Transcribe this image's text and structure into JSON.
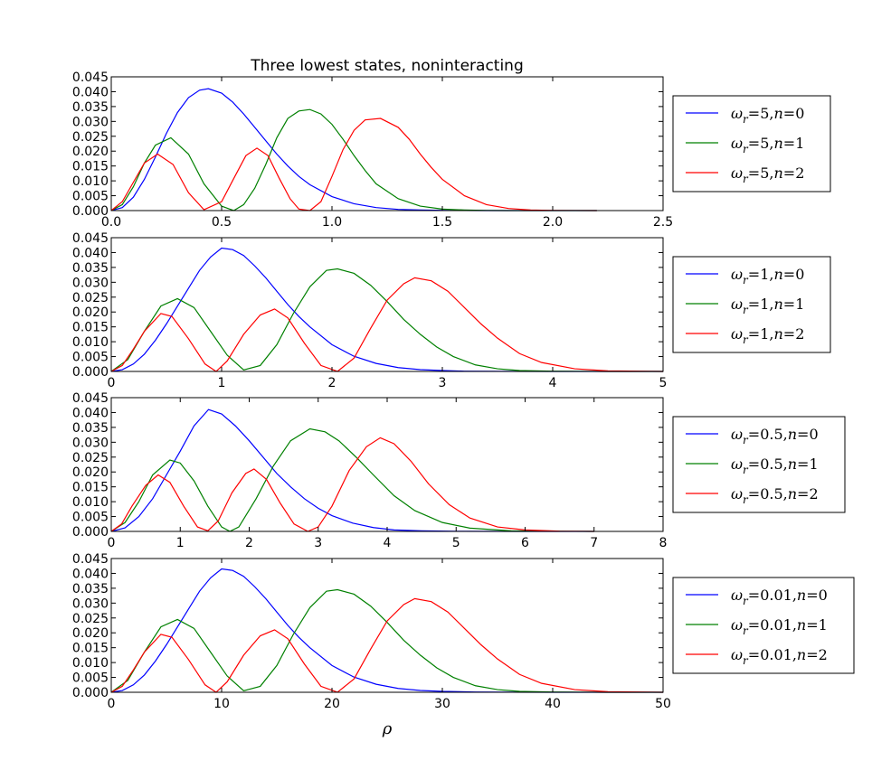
{
  "chart_data": {
    "type": "line",
    "title": "Three lowest states, noninteracting",
    "xlabel": "ρ",
    "ylabel": "",
    "grid": false,
    "legend_placement": "outside-right",
    "colors": {
      "n0": "#0000ff",
      "n1": "#008000",
      "n2": "#ff0000"
    },
    "panels": [
      {
        "omega": "5",
        "xlim": [
          0,
          2.5
        ],
        "ylim": [
          0,
          0.045
        ],
        "xticks": [
          "0.0",
          "0.5",
          "1.0",
          "1.5",
          "2.0",
          "2.5"
        ],
        "yticks": [
          "0.000",
          "0.005",
          "0.010",
          "0.015",
          "0.020",
          "0.025",
          "0.030",
          "0.035",
          "0.040",
          "0.045"
        ],
        "series": [
          {
            "name": "ω_r=5, n=0",
            "x": [
              0,
              0.05,
              0.1,
              0.15,
              0.2,
              0.25,
              0.3,
              0.35,
              0.4,
              0.44,
              0.5,
              0.55,
              0.6,
              0.65,
              0.7,
              0.75,
              0.8,
              0.85,
              0.9,
              1.0,
              1.1,
              1.2,
              1.3,
              1.4,
              1.5,
              1.6,
              1.7,
              1.8,
              2.0,
              2.2
            ],
            "y": [
              0,
              0.001,
              0.0045,
              0.0105,
              0.018,
              0.026,
              0.033,
              0.038,
              0.0405,
              0.041,
              0.0395,
              0.0365,
              0.0325,
              0.028,
              0.0235,
              0.019,
              0.015,
              0.0115,
              0.0087,
              0.0047,
              0.0023,
              0.001,
              0.0004,
              0.0002,
              0.0001,
              3e-05,
              1e-05,
              0,
              0,
              0
            ]
          },
          {
            "name": "ω_r=5, n=1",
            "x": [
              0,
              0.05,
              0.1,
              0.15,
              0.2,
              0.27,
              0.35,
              0.42,
              0.5,
              0.555,
              0.6,
              0.65,
              0.7,
              0.75,
              0.8,
              0.85,
              0.9,
              0.95,
              1.0,
              1.05,
              1.1,
              1.15,
              1.2,
              1.3,
              1.4,
              1.5,
              1.6,
              1.7,
              1.8,
              2.0,
              2.2
            ],
            "y": [
              0,
              0.002,
              0.008,
              0.016,
              0.022,
              0.0245,
              0.019,
              0.009,
              0.0015,
              0,
              0.002,
              0.0075,
              0.0155,
              0.0245,
              0.031,
              0.0335,
              0.034,
              0.0325,
              0.029,
              0.024,
              0.0185,
              0.0135,
              0.009,
              0.004,
              0.0015,
              0.0005,
              0.0002,
              5e-05,
              0,
              0,
              0
            ]
          },
          {
            "name": "ω_r=5, n=2",
            "x": [
              0,
              0.05,
              0.1,
              0.15,
              0.21,
              0.28,
              0.35,
              0.42,
              0.5,
              0.56,
              0.61,
              0.66,
              0.71,
              0.76,
              0.81,
              0.85,
              0.9,
              0.95,
              1.0,
              1.05,
              1.1,
              1.15,
              1.22,
              1.3,
              1.35,
              1.4,
              1.45,
              1.5,
              1.6,
              1.7,
              1.8,
              1.9,
              2.0,
              2.2
            ],
            "y": [
              0,
              0.003,
              0.0095,
              0.016,
              0.019,
              0.0155,
              0.006,
              0.0003,
              0.003,
              0.0115,
              0.0185,
              0.021,
              0.0185,
              0.011,
              0.004,
              0.0005,
              0,
              0.003,
              0.0115,
              0.0205,
              0.027,
              0.0305,
              0.031,
              0.028,
              0.024,
              0.019,
              0.0145,
              0.0105,
              0.005,
              0.002,
              0.0007,
              0.0002,
              5e-05,
              0
            ]
          }
        ]
      },
      {
        "omega": "1",
        "xlim": [
          0,
          5
        ],
        "ylim": [
          0,
          0.045
        ],
        "xticks": [
          "0",
          "1",
          "2",
          "3",
          "4",
          "5"
        ],
        "yticks": [
          "0.000",
          "0.005",
          "0.010",
          "0.015",
          "0.020",
          "0.025",
          "0.030",
          "0.035",
          "0.040",
          "0.045"
        ],
        "series": [
          {
            "name": "ω_r=1, n=0",
            "x": [
              0,
              0.1,
              0.2,
              0.3,
              0.4,
              0.5,
              0.6,
              0.7,
              0.8,
              0.9,
              1.0,
              1.1,
              1.2,
              1.3,
              1.4,
              1.5,
              1.6,
              1.7,
              1.8,
              2.0,
              2.2,
              2.4,
              2.6,
              2.8,
              3.0,
              3.2,
              3.5,
              4.0,
              4.5,
              5.0
            ],
            "y": [
              0,
              0.0006,
              0.0025,
              0.0058,
              0.0105,
              0.016,
              0.022,
              0.028,
              0.034,
              0.0385,
              0.0415,
              0.041,
              0.039,
              0.0355,
              0.0315,
              0.027,
              0.0225,
              0.0185,
              0.015,
              0.009,
              0.0051,
              0.0027,
              0.0013,
              0.0006,
              0.0003,
              0.0001,
              3e-05,
              0,
              0,
              0
            ]
          },
          {
            "name": "ω_r=1, n=1",
            "x": [
              0,
              0.15,
              0.3,
              0.45,
              0.6,
              0.75,
              0.9,
              1.05,
              1.2,
              1.35,
              1.5,
              1.65,
              1.8,
              1.95,
              2.05,
              2.2,
              2.35,
              2.5,
              2.65,
              2.8,
              2.95,
              3.1,
              3.3,
              3.5,
              3.7,
              4.0,
              4.5,
              5.0
            ],
            "y": [
              0,
              0.004,
              0.0135,
              0.022,
              0.0245,
              0.0215,
              0.0135,
              0.0055,
              0.0005,
              0.002,
              0.009,
              0.0195,
              0.0285,
              0.034,
              0.0345,
              0.033,
              0.029,
              0.0235,
              0.0175,
              0.0125,
              0.0082,
              0.005,
              0.0022,
              0.0009,
              0.0003,
              0.0001,
              0,
              0
            ]
          },
          {
            "name": "ω_r=1, n=2",
            "x": [
              0,
              0.1,
              0.2,
              0.3,
              0.45,
              0.55,
              0.7,
              0.85,
              0.95,
              1.05,
              1.2,
              1.35,
              1.48,
              1.6,
              1.75,
              1.9,
              2.05,
              2.2,
              2.35,
              2.5,
              2.65,
              2.75,
              2.9,
              3.05,
              3.2,
              3.35,
              3.5,
              3.7,
              3.9,
              4.2,
              4.5,
              5.0
            ],
            "y": [
              0,
              0.002,
              0.0075,
              0.0135,
              0.0195,
              0.0185,
              0.011,
              0.0025,
              0,
              0.0035,
              0.0125,
              0.019,
              0.021,
              0.018,
              0.0095,
              0.002,
              0,
              0.0045,
              0.0145,
              0.024,
              0.0295,
              0.0315,
              0.0305,
              0.027,
              0.0215,
              0.016,
              0.0112,
              0.006,
              0.003,
              0.0009,
              0.0002,
              0
            ]
          }
        ]
      },
      {
        "omega": "0.5",
        "xlim": [
          0,
          8
        ],
        "ylim": [
          0,
          0.045
        ],
        "xticks": [
          "0",
          "1",
          "2",
          "3",
          "4",
          "5",
          "6",
          "7",
          "8"
        ],
        "yticks": [
          "0.000",
          "0.005",
          "0.010",
          "0.015",
          "0.020",
          "0.025",
          "0.030",
          "0.035",
          "0.040",
          "0.045"
        ],
        "series": [
          {
            "name": "ω_r=0.5, n=0",
            "x": [
              0,
              0.2,
              0.4,
              0.6,
              0.8,
              1.0,
              1.2,
              1.41,
              1.6,
              1.8,
              2.0,
              2.2,
              2.4,
              2.6,
              2.8,
              3.0,
              3.2,
              3.5,
              3.8,
              4.1,
              4.5,
              5.0,
              6.0,
              7.0
            ],
            "y": [
              0,
              0.0012,
              0.005,
              0.011,
              0.019,
              0.027,
              0.0355,
              0.041,
              0.0395,
              0.0355,
              0.0305,
              0.025,
              0.0195,
              0.015,
              0.011,
              0.0078,
              0.0053,
              0.0028,
              0.0013,
              0.0005,
              0.0002,
              3e-05,
              0,
              0
            ]
          },
          {
            "name": "ω_r=0.5, n=1",
            "x": [
              0,
              0.2,
              0.4,
              0.6,
              0.85,
              1.0,
              1.2,
              1.4,
              1.6,
              1.72,
              1.85,
              2.1,
              2.35,
              2.6,
              2.88,
              3.1,
              3.3,
              3.55,
              3.8,
              4.1,
              4.4,
              4.8,
              5.2,
              5.8,
              6.5,
              7.0
            ],
            "y": [
              0,
              0.003,
              0.01,
              0.019,
              0.024,
              0.023,
              0.017,
              0.0085,
              0.0015,
              0,
              0.0015,
              0.011,
              0.022,
              0.0305,
              0.0345,
              0.0335,
              0.0305,
              0.025,
              0.019,
              0.012,
              0.007,
              0.003,
              0.0011,
              0.0002,
              3e-05,
              0
            ]
          },
          {
            "name": "ω_r=0.5, n=2",
            "x": [
              0,
              0.15,
              0.3,
              0.5,
              0.68,
              0.85,
              1.05,
              1.25,
              1.4,
              1.55,
              1.75,
              1.95,
              2.07,
              2.25,
              2.45,
              2.65,
              2.85,
              3.0,
              3.2,
              3.45,
              3.7,
              3.9,
              4.1,
              4.35,
              4.6,
              4.9,
              5.2,
              5.6,
              6.0,
              6.5,
              7.0
            ],
            "y": [
              0,
              0.0025,
              0.0085,
              0.0155,
              0.019,
              0.0165,
              0.0085,
              0.0015,
              0.0002,
              0.0035,
              0.013,
              0.0195,
              0.021,
              0.0175,
              0.0095,
              0.0025,
              0,
              0.0015,
              0.0085,
              0.0205,
              0.0285,
              0.0315,
              0.0295,
              0.0235,
              0.016,
              0.009,
              0.0045,
              0.0015,
              0.0005,
              0.0001,
              0
            ]
          }
        ]
      },
      {
        "omega": "0.01",
        "xlim": [
          0,
          50
        ],
        "ylim": [
          0,
          0.045
        ],
        "xticks": [
          "0",
          "10",
          "20",
          "30",
          "40",
          "50"
        ],
        "yticks": [
          "0.000",
          "0.005",
          "0.010",
          "0.015",
          "0.020",
          "0.025",
          "0.030",
          "0.035",
          "0.040",
          "0.045"
        ],
        "series": [
          {
            "name": "ω_r=0.01, n=0",
            "x": [
              0,
              1,
              2,
              3,
              4,
              5,
              6,
              7,
              8,
              9,
              10,
              11,
              12,
              13,
              14,
              15,
              16,
              17,
              18,
              20,
              22,
              24,
              26,
              28,
              30,
              33,
              36,
              40,
              45,
              50
            ],
            "y": [
              0,
              0.0006,
              0.0025,
              0.0058,
              0.0105,
              0.016,
              0.022,
              0.028,
              0.034,
              0.0385,
              0.0415,
              0.041,
              0.039,
              0.0355,
              0.0315,
              0.027,
              0.0225,
              0.0185,
              0.015,
              0.009,
              0.0051,
              0.0027,
              0.0013,
              0.0006,
              0.0003,
              0.0001,
              3e-05,
              0,
              0,
              0
            ]
          },
          {
            "name": "ω_r=0.01, n=1",
            "x": [
              0,
              1.5,
              3,
              4.5,
              6,
              7.5,
              9,
              10.5,
              12,
              13.5,
              15,
              16.5,
              18,
              19.5,
              20.5,
              22,
              23.5,
              25,
              26.5,
              28,
              29.5,
              31,
              33,
              35,
              37,
              40,
              45,
              50
            ],
            "y": [
              0,
              0.004,
              0.0135,
              0.022,
              0.0245,
              0.0215,
              0.0135,
              0.0055,
              0.0005,
              0.002,
              0.009,
              0.0195,
              0.0285,
              0.034,
              0.0345,
              0.033,
              0.029,
              0.0235,
              0.0175,
              0.0125,
              0.0082,
              0.005,
              0.0022,
              0.0009,
              0.0003,
              0.0001,
              0,
              0
            ]
          },
          {
            "name": "ω_r=0.01, n=2",
            "x": [
              0,
              1,
              2,
              3,
              4.5,
              5.5,
              7,
              8.5,
              9.5,
              10.5,
              12,
              13.5,
              14.8,
              16,
              17.5,
              19,
              20.5,
              22,
              23.5,
              25,
              26.5,
              27.5,
              29,
              30.5,
              32,
              33.5,
              35,
              37,
              39,
              42,
              45,
              50
            ],
            "y": [
              0,
              0.002,
              0.0075,
              0.0135,
              0.0195,
              0.0185,
              0.011,
              0.0025,
              0,
              0.0035,
              0.0125,
              0.019,
              0.021,
              0.018,
              0.0095,
              0.002,
              0,
              0.0045,
              0.0145,
              0.024,
              0.0295,
              0.0315,
              0.0305,
              0.027,
              0.0215,
              0.016,
              0.0112,
              0.006,
              0.003,
              0.0009,
              0.0002,
              0
            ]
          }
        ]
      }
    ]
  }
}
